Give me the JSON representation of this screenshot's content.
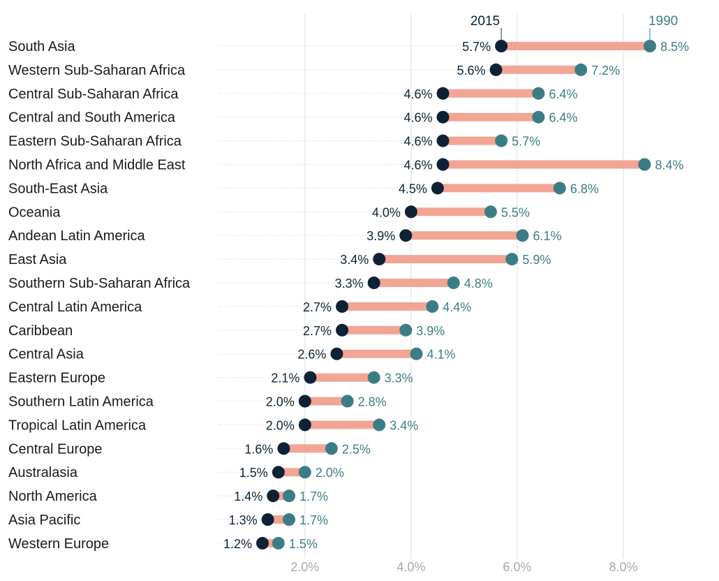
{
  "chart_data": {
    "type": "dumbbell",
    "title": "",
    "xlabel": "",
    "ylabel": "",
    "xlim": [
      0.2,
      9.5
    ],
    "x_ticks": [
      2,
      4,
      6,
      8
    ],
    "x_tick_labels": [
      "2.0%",
      "4.0%",
      "6.0%",
      "8.0%"
    ],
    "grid": "vertical",
    "legend": {
      "position": "top-right",
      "entries": [
        "2015",
        "1990"
      ]
    },
    "colors": {
      "year_2015": "#0e2236",
      "year_1990": "#3b7d85",
      "connector": "#f2a594",
      "grid": "#dcdcdc"
    },
    "categories": [
      "South Asia",
      "Western Sub-Saharan Africa",
      "Central Sub-Saharan Africa",
      "Central and South America",
      "Eastern Sub-Saharan Africa",
      "North Africa and Middle East",
      "South-East Asia",
      "Oceania",
      "Andean Latin America",
      "East Asia",
      "Southern Sub-Saharan Africa",
      "Central Latin America",
      "Caribbean",
      "Central Asia",
      "Eastern Europe",
      "Southern Latin America",
      "Tropical Latin America",
      "Central Europe",
      "Australasia",
      "North America",
      "Asia Pacific",
      "Western Europe"
    ],
    "series": [
      {
        "name": "2015",
        "values": [
          5.7,
          5.6,
          4.6,
          4.6,
          4.6,
          4.6,
          4.5,
          4.0,
          3.9,
          3.4,
          3.3,
          2.7,
          2.7,
          2.6,
          2.1,
          2.0,
          2.0,
          1.6,
          1.5,
          1.4,
          1.3,
          1.2
        ],
        "labels": [
          "5.7%",
          "5.6%",
          "4.6%",
          "4.6%",
          "4.6%",
          "4.6%",
          "4.5%",
          "4.0%",
          "3.9%",
          "3.4%",
          "3.3%",
          "2.7%",
          "2.7%",
          "2.6%",
          "2.1%",
          "2.0%",
          "2.0%",
          "1.6%",
          "1.5%",
          "1.4%",
          "1.3%",
          "1.2%"
        ]
      },
      {
        "name": "1990",
        "values": [
          8.5,
          7.2,
          6.4,
          6.4,
          5.7,
          8.4,
          6.8,
          5.5,
          6.1,
          5.9,
          4.8,
          4.4,
          3.9,
          4.1,
          3.3,
          2.8,
          3.4,
          2.5,
          2.0,
          1.7,
          1.7,
          1.5
        ],
        "labels": [
          "8.5%",
          "7.2%",
          "6.4%",
          "6.4%",
          "5.7%",
          "8.4%",
          "6.8%",
          "5.5%",
          "6.1%",
          "5.9%",
          "4.8%",
          "4.4%",
          "3.9%",
          "4.1%",
          "3.3%",
          "2.8%",
          "3.4%",
          "2.5%",
          "2.0%",
          "1.7%",
          "1.7%",
          "1.5%"
        ]
      }
    ]
  }
}
